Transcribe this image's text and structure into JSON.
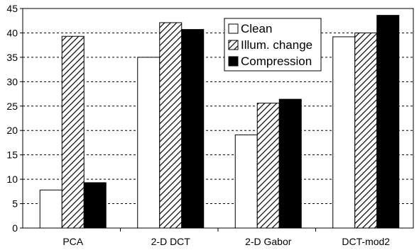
{
  "chart_data": {
    "type": "bar",
    "title": "",
    "xlabel": "",
    "ylabel": "",
    "categories": [
      "PCA",
      "2-D DCT",
      "2-D Gabor",
      "DCT-mod2"
    ],
    "ylim": [
      0,
      45
    ],
    "yticks": [
      0,
      5,
      10,
      15,
      20,
      25,
      30,
      35,
      40,
      45
    ],
    "grid": "horizontal dashed",
    "legend_position": "top-right",
    "series": [
      {
        "name": "Clean",
        "values": [
          7.8,
          35.0,
          19.1,
          39.2
        ],
        "fill": "#ffffff",
        "pattern": "none"
      },
      {
        "name": "Illum. change",
        "values": [
          39.3,
          42.1,
          25.6,
          40.0
        ],
        "fill": "#ffffff",
        "pattern": "hatch"
      },
      {
        "name": "Compression",
        "values": [
          9.3,
          40.7,
          26.4,
          43.6
        ],
        "fill": "#000000",
        "pattern": "none"
      }
    ]
  }
}
